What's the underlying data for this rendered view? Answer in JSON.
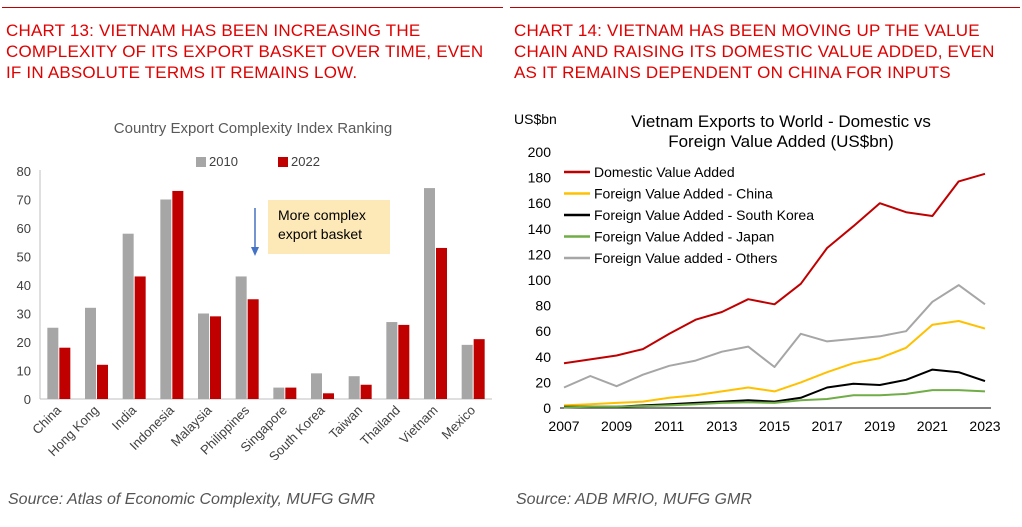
{
  "left": {
    "heading": "CHART 13: VIETNAM HAS BEEN INCREASING THE COMPLEXITY OF ITS EXPORT BASKET OVER TIME, EVEN IF IN ABSOLUTE TERMS IT REMAINS LOW.",
    "source": "Source: Atlas of Economic Complexity, MUFG GMR"
  },
  "right": {
    "heading": "CHART 14: VIETNAM HAS BEEN MOVING UP THE VALUE CHAIN AND RAISING ITS DOMESTIC VALUE ADDED, EVEN AS IT REMAINS DEPENDENT ON CHINA FOR INPUTS",
    "source": "Source: ADB MRIO, MUFG GMR"
  },
  "chart_data": [
    {
      "type": "bar",
      "title": "Country Export Complexity Index Ranking",
      "categories": [
        "China",
        "Hong Kong",
        "India",
        "Indonesia",
        "Malaysia",
        "Philippines",
        "Singapore",
        "South Korea",
        "Taiwan",
        "Thailand",
        "Vietnam",
        "Mexico"
      ],
      "series": [
        {
          "name": "2010",
          "color": "#a6a6a6",
          "values": [
            25,
            32,
            58,
            70,
            30,
            43,
            4,
            9,
            8,
            27,
            74,
            19
          ]
        },
        {
          "name": "2022",
          "color": "#c00000",
          "values": [
            18,
            12,
            43,
            73,
            29,
            35,
            4,
            2,
            5,
            26,
            53,
            21
          ]
        }
      ],
      "ylim": [
        0,
        80
      ],
      "yticks": [
        0,
        10,
        20,
        30,
        40,
        50,
        60,
        70,
        80
      ],
      "legend": "top",
      "annotation": {
        "text": [
          "More complex",
          "export basket"
        ],
        "box_color": "#fde9b8",
        "arrow_color": "#4472c4",
        "arrow": "down"
      }
    },
    {
      "type": "line",
      "title": "Vietnam Exports to World - Domestic vs Foreign Value Added (US$bn)",
      "title_lines": [
        "Vietnam Exports to World - Domestic vs",
        "Foreign Value Added (US$bn)"
      ],
      "ylabel": "US$bn",
      "x": [
        2007,
        2008,
        2009,
        2010,
        2011,
        2012,
        2013,
        2014,
        2015,
        2016,
        2017,
        2018,
        2019,
        2020,
        2021,
        2022,
        2023
      ],
      "xticks": [
        2007,
        2009,
        2011,
        2013,
        2015,
        2017,
        2019,
        2021,
        2023
      ],
      "ylim": [
        0,
        200
      ],
      "yticks": [
        0,
        20,
        40,
        60,
        80,
        100,
        120,
        140,
        160,
        180,
        200
      ],
      "legend": "top-left",
      "series": [
        {
          "name": "Domestic Value Added",
          "color": "#c00000",
          "values": [
            35,
            38,
            41,
            46,
            58,
            69,
            75,
            85,
            81,
            97,
            125,
            142,
            160,
            153,
            150,
            177,
            183
          ]
        },
        {
          "name": "Foreign Value Added - China",
          "color": "#ffc000",
          "values": [
            2,
            3,
            4,
            5,
            8,
            10,
            13,
            16,
            13,
            20,
            28,
            35,
            39,
            47,
            65,
            68,
            62
          ]
        },
        {
          "name": "Foreign Value Added - South Korea",
          "color": "#000000",
          "values": [
            1,
            1,
            1,
            2,
            3,
            4,
            5,
            6,
            5,
            8,
            16,
            19,
            18,
            22,
            30,
            28,
            21
          ]
        },
        {
          "name": "Foreign Value Added - Japan",
          "color": "#70ad47",
          "values": [
            0.5,
            1,
            1,
            1.5,
            2,
            3,
            4,
            4.5,
            4,
            6,
            7,
            10,
            10,
            11,
            14,
            14,
            13
          ]
        },
        {
          "name": "Foreign Value added - Others",
          "color": "#a6a6a6",
          "values": [
            16,
            25,
            17,
            26,
            33,
            37,
            44,
            48,
            32,
            58,
            52,
            54,
            56,
            60,
            83,
            96,
            81
          ]
        }
      ]
    }
  ]
}
